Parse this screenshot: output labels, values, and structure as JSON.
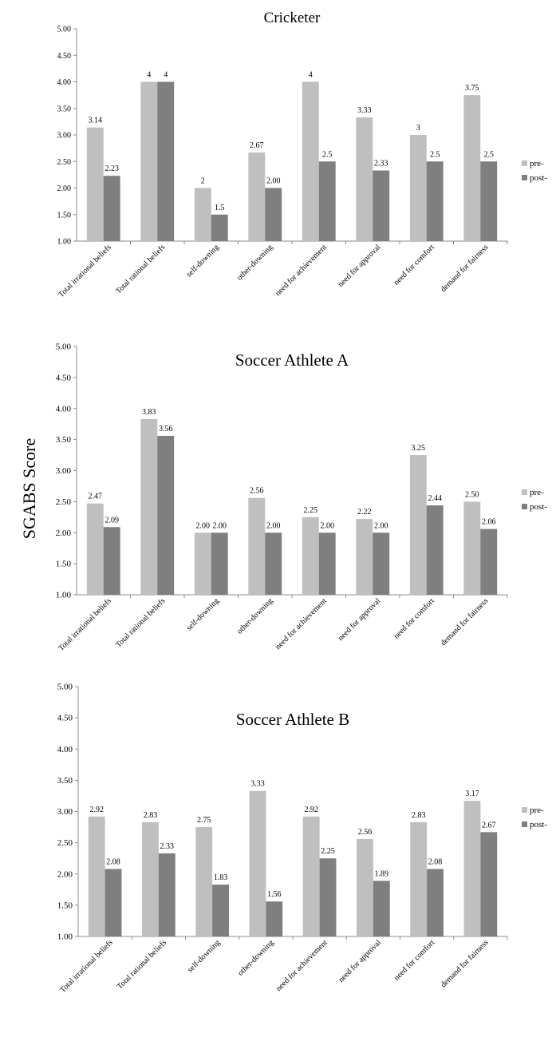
{
  "shared_ylabel": "SGABS Score",
  "colors": {
    "pre": "#bfbfbf",
    "post": "#7f7f7f",
    "axis": "#8c8c8c",
    "text": "#000000"
  },
  "chart_data": [
    {
      "type": "bar",
      "title": "Cricketer",
      "categories": [
        "Total irrational beliefs",
        "Total rational beliefs",
        "self-downing",
        "other-downing",
        "need for achievement",
        "need for approval",
        "need for comfort",
        "demand for fairness"
      ],
      "series": [
        {
          "name": "pre-",
          "values": [
            3.14,
            4,
            2,
            2.67,
            4,
            3.33,
            3,
            3.75
          ],
          "labels": [
            "3.14",
            "4",
            "2",
            "2.67",
            "4",
            "3.33",
            "3",
            "3.75"
          ]
        },
        {
          "name": "post-",
          "values": [
            2.23,
            4,
            1.5,
            2.0,
            2.5,
            2.33,
            2.5,
            2.5
          ],
          "labels": [
            "2.23",
            "4",
            "1.5",
            "2.00",
            "2.5",
            "2.33",
            "2.5",
            "2.5"
          ]
        }
      ],
      "ylim": [
        1,
        5
      ],
      "yticks": [
        "1.00",
        "1.50",
        "2.00",
        "2.50",
        "3.00",
        "3.50",
        "4.00",
        "4.50",
        "5.00"
      ],
      "legend_position": "right"
    },
    {
      "type": "bar",
      "title": "Soccer Athlete A",
      "categories": [
        "Total irrational beliefs",
        "Total rational beliefs",
        "self-downing",
        "other-downing",
        "need for achievement",
        "need for approval",
        "need for comfort",
        "demand for fairness"
      ],
      "series": [
        {
          "name": "pre-",
          "values": [
            2.47,
            3.83,
            2.0,
            2.56,
            2.25,
            2.22,
            3.25,
            2.5
          ],
          "labels": [
            "2.47",
            "3.83",
            "2.00",
            "2.56",
            "2.25",
            "2.22",
            "3.25",
            "2.50"
          ]
        },
        {
          "name": "post-",
          "values": [
            2.09,
            3.56,
            2.0,
            2.0,
            2.0,
            2.0,
            2.44,
            2.06
          ],
          "labels": [
            "2.09",
            "3.56",
            "2.00",
            "2.00",
            "2.00",
            "2.00",
            "2.44",
            "2.06"
          ]
        }
      ],
      "ylim": [
        1,
        5
      ],
      "yticks": [
        "1.00",
        "1.50",
        "2.00",
        "2.50",
        "3.00",
        "3.50",
        "4.00",
        "4.50",
        "5.00"
      ],
      "legend_position": "right"
    },
    {
      "type": "bar",
      "title": "Soccer Athlete B",
      "categories": [
        "Total irrational beliefs",
        "Total rational beliefs",
        "self-downing",
        "other-downing",
        "need for achievement",
        "need for approval",
        "need for comfort",
        "demand for fairness"
      ],
      "series": [
        {
          "name": "pre-",
          "values": [
            2.92,
            2.83,
            2.75,
            3.33,
            2.92,
            2.56,
            2.83,
            3.17
          ],
          "labels": [
            "2.92",
            "2.83",
            "2.75",
            "3.33",
            "2.92",
            "2.56",
            "2.83",
            "3.17"
          ]
        },
        {
          "name": "post-",
          "values": [
            2.08,
            2.33,
            1.83,
            1.56,
            2.25,
            1.89,
            2.08,
            2.67
          ],
          "labels": [
            "2.08",
            "2.33",
            "1.83",
            "1.56",
            "2.25",
            "1.89",
            "2.08",
            "2.67"
          ]
        }
      ],
      "ylim": [
        1,
        5
      ],
      "yticks": [
        "1.00",
        "1.50",
        "2.00",
        "2.50",
        "3.00",
        "3.50",
        "4.00",
        "4.50",
        "5.00"
      ],
      "legend_position": "right"
    }
  ]
}
